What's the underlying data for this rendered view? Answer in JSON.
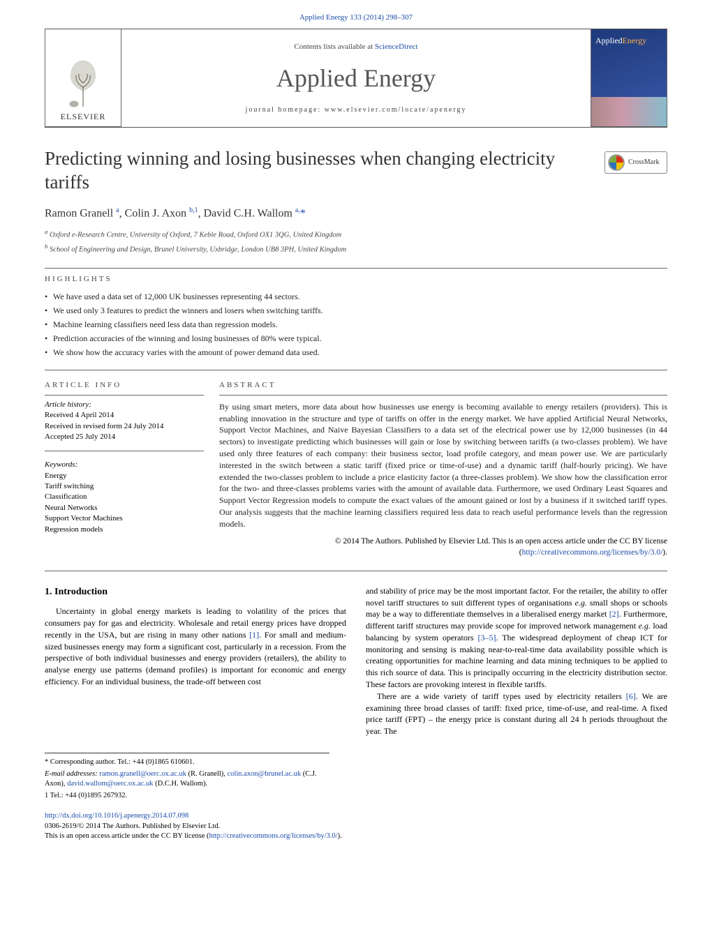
{
  "header": {
    "citation_link_text": "Applied Energy 133 (2014) 298–307",
    "contents_line_pre": "Contents lists available at ",
    "contents_line_link": "ScienceDirect",
    "journal_title": "Applied Energy",
    "homepage_pre": "journal homepage: ",
    "homepage_link": "www.elsevier.com/locate/apenergy",
    "publisher_logo_text": "ELSEVIER",
    "cover_brand_pre": "Applied",
    "cover_brand_post": "Energy"
  },
  "crossmark": {
    "label": "CrossMark"
  },
  "paper": {
    "title": "Predicting winning and losing businesses when changing electricity tariffs",
    "authors_html": "Ramon Granell <sup>a</sup>, Colin J. Axon <sup>b,1</sup>, David C.H. Wallom <sup>a,</sup><span class=\"ast\">*</span>",
    "affiliations": [
      "a Oxford e-Research Centre, University of Oxford, 7 Keble Road, Oxford OX1 3QG, United Kingdom",
      "b School of Engineering and Design, Brunel University, Uxbridge, London UB8 3PH, United Kingdom"
    ]
  },
  "labels": {
    "highlights": "HIGHLIGHTS",
    "article_info": "ARTICLE INFO",
    "abstract": "ABSTRACT",
    "article_history": "Article history:",
    "keywords": "Keywords:"
  },
  "highlights": [
    "We have used a data set of 12,000 UK businesses representing 44 sectors.",
    "We used only 3 features to predict the winners and losers when switching tariffs.",
    "Machine learning classifiers need less data than regression models.",
    "Prediction accuracies of the winning and losing businesses of 80% were typical.",
    "We show how the accuracy varies with the amount of power demand data used."
  ],
  "article_history": [
    "Received 4 April 2014",
    "Received in revised form 24 July 2014",
    "Accepted 25 July 2014"
  ],
  "keywords": [
    "Energy",
    "Tariff switching",
    "Classification",
    "Neural Networks",
    "Support Vector Machines",
    "Regression models"
  ],
  "abstract": "By using smart meters, more data about how businesses use energy is becoming available to energy retailers (providers). This is enabling innovation in the structure and type of tariffs on offer in the energy market. We have applied Artificial Neural Networks, Support Vector Machines, and Naive Bayesian Classifiers to a data set of the electrical power use by 12,000 businesses (in 44 sectors) to investigate predicting which businesses will gain or lose by switching between tariffs (a two-classes problem). We have used only three features of each company: their business sector, load profile category, and mean power use. We are particularly interested in the switch between a static tariff (fixed price or time-of-use) and a dynamic tariff (half-hourly pricing). We have extended the two-classes problem to include a price elasticity factor (a three-classes problem). We show how the classification error for the two- and three-classes problems varies with the amount of available data. Furthermore, we used Ordinary Least Squares and Support Vector Regression models to compute the exact values of the amount gained or lost by a business if it switched tariff types. Our analysis suggests that the machine learning classifiers required less data to reach useful performance levels than the regression models.",
  "copyright": {
    "pre": "© 2014 The Authors. Published by Elsevier Ltd. This is an open access article under the CC BY license (",
    "link": "http://creativecommons.org/licenses/by/3.0/",
    "post": ")."
  },
  "intro": {
    "heading": "1. Introduction",
    "col1": "Uncertainty in global energy markets is leading to volatility of the prices that consumers pay for gas and electricity. Wholesale and retail energy prices have dropped recently in the USA, but are rising in many other nations [1]. For small and medium-sized businesses energy may form a significant cost, particularly in a recession. From the perspective of both individual businesses and energy providers (retailers), the ability to analyse energy use patterns (demand profiles) is important for economic and energy efficiency. For an individual business, the trade-off between cost",
    "col2_p1": "and stability of price may be the most important factor. For the retailer, the ability to offer novel tariff structures to suit different types of organisations e.g. small shops or schools may be a way to differentiate themselves in a liberalised energy market [2]. Furthermore, different tariff structures may provide scope for improved network management e.g. load balancing by system operators [3–5]. The widespread deployment of cheap ICT for monitoring and sensing is making near-to-real-time data availability possible which is creating opportunities for machine learning and data mining techniques to be applied to this rich source of data. This is principally occurring in the electricity distribution sector. These factors are provoking interest in flexible tariffs.",
    "col2_p2": "There are a wide variety of tariff types used by electricity retailers [6]. We are examining three broad classes of tariff: fixed price, time-of-use, and real-time. A fixed price tariff (FPT) – the energy price is constant during all 24 h periods throughout the year. The"
  },
  "refs": {
    "r1": "[1]",
    "r2": "[2]",
    "r35": "[3–5]",
    "r6": "[6]"
  },
  "footnotes": {
    "corr": "* Corresponding author. Tel.: +44 (0)1865 610601.",
    "emails_pre": "E-mail addresses: ",
    "e1": "ramon.granell@oerc.ox.ac.uk",
    "e1_who": " (R. Granell), ",
    "e2": "colin.axon@brunel.ac.uk",
    "e2_who": " (C.J. Axon), ",
    "e3": "david.wallom@oerc.ox.ac.uk",
    "e3_who": " (D.C.H. Wallom).",
    "tel1": "1 Tel.: +44 (0)1895 267932."
  },
  "bottom": {
    "doi": "http://dx.doi.org/10.1016/j.apenergy.2014.07.098",
    "issn_line": "0306-2619/© 2014 The Authors. Published by Elsevier Ltd.",
    "oa_pre": "This is an open access article under the CC BY license (",
    "oa_link": "http://creativecommons.org/licenses/by/3.0/",
    "oa_post": ")."
  },
  "colors": {
    "link": "#1a4ba8",
    "text": "#222222",
    "rule": "#666666"
  }
}
